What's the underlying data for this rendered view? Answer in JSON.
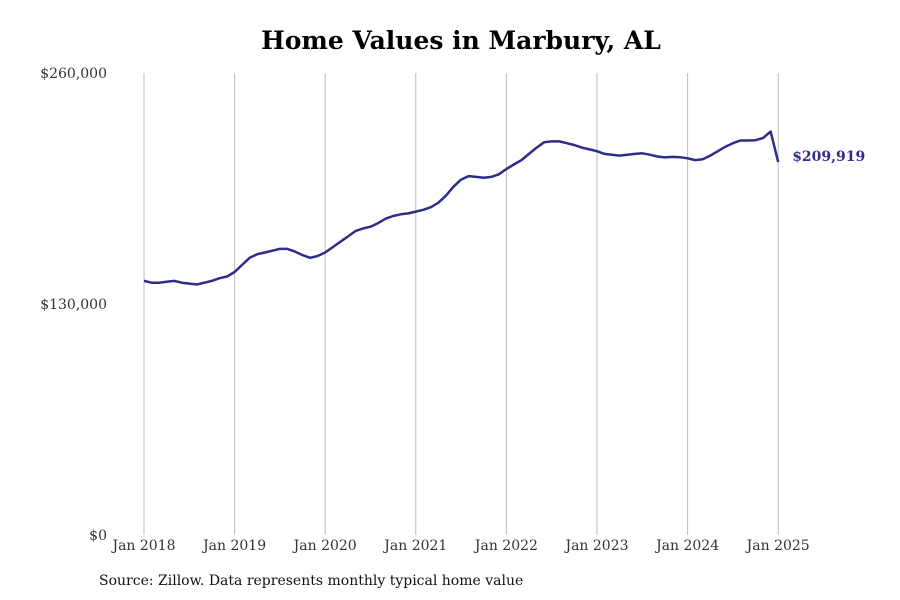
{
  "title": "Home Values in Marbury, AL",
  "source_note": "Source: Zillow. Data represents monthly typical home value",
  "colors": {
    "line": "#2e2d88",
    "grid": "#bbbbbb"
  },
  "chart_data": {
    "type": "line",
    "title": "Home Values in Marbury, AL",
    "xlabel": "",
    "ylabel": "",
    "grid": "vertical",
    "ylim": [
      0,
      260000
    ],
    "y_ticks": [
      0,
      130000,
      260000
    ],
    "y_tick_labels": [
      "$0",
      "$130,000",
      "$260,000"
    ],
    "x_tick_labels": [
      "Jan 2018",
      "Jan 2019",
      "Jan 2020",
      "Jan 2021",
      "Jan 2022",
      "Jan 2023",
      "Jan 2024",
      "Jan 2025"
    ],
    "end_label": "$209,919",
    "series": [
      {
        "x": [
          "2018-01",
          "2018-02",
          "2018-03",
          "2018-04",
          "2018-05",
          "2018-06",
          "2018-07",
          "2018-08",
          "2018-09",
          "2018-10",
          "2018-11",
          "2018-12",
          "2019-01",
          "2019-02",
          "2019-03",
          "2019-04",
          "2019-05",
          "2019-06",
          "2019-07",
          "2019-08",
          "2019-09",
          "2019-10",
          "2019-11",
          "2019-12",
          "2020-01",
          "2020-02",
          "2020-03",
          "2020-04",
          "2020-05",
          "2020-06",
          "2020-07",
          "2020-08",
          "2020-09",
          "2020-10",
          "2020-11",
          "2020-12",
          "2021-01",
          "2021-02",
          "2021-03",
          "2021-04",
          "2021-05",
          "2021-06",
          "2021-07",
          "2021-08",
          "2021-09",
          "2021-10",
          "2021-11",
          "2021-12",
          "2022-01",
          "2022-02",
          "2022-03",
          "2022-04",
          "2022-05",
          "2022-06",
          "2022-07",
          "2022-08",
          "2022-09",
          "2022-10",
          "2022-11",
          "2022-12",
          "2023-01",
          "2023-02",
          "2023-03",
          "2023-04",
          "2023-05",
          "2023-06",
          "2023-07",
          "2023-08",
          "2023-09",
          "2023-10",
          "2023-11",
          "2023-12",
          "2024-01",
          "2024-02",
          "2024-03",
          "2024-04",
          "2024-05",
          "2024-06",
          "2024-07",
          "2024-08",
          "2024-09",
          "2024-10",
          "2024-11",
          "2024-12",
          "2025-01"
        ],
        "values": [
          143000,
          142000,
          142000,
          142500,
          143000,
          142000,
          141500,
          141000,
          142000,
          143000,
          144500,
          145500,
          148000,
          152000,
          156000,
          158000,
          159000,
          160000,
          161000,
          161000,
          159500,
          157500,
          156000,
          157000,
          159000,
          162000,
          165000,
          168000,
          171000,
          172500,
          173500,
          175500,
          178000,
          179500,
          180500,
          181000,
          182000,
          183000,
          184500,
          187000,
          191000,
          196000,
          200000,
          202000,
          201500,
          201000,
          201500,
          203000,
          206000,
          208500,
          211000,
          214500,
          218000,
          221000,
          221500,
          221500,
          220500,
          219500,
          218000,
          217000,
          216000,
          214500,
          214000,
          213500,
          214000,
          214500,
          214800,
          214000,
          213000,
          212500,
          212800,
          212600,
          212000,
          211000,
          211500,
          213500,
          216000,
          218500,
          220500,
          222000,
          222000,
          222200,
          223500,
          227000,
          209919
        ]
      }
    ]
  }
}
